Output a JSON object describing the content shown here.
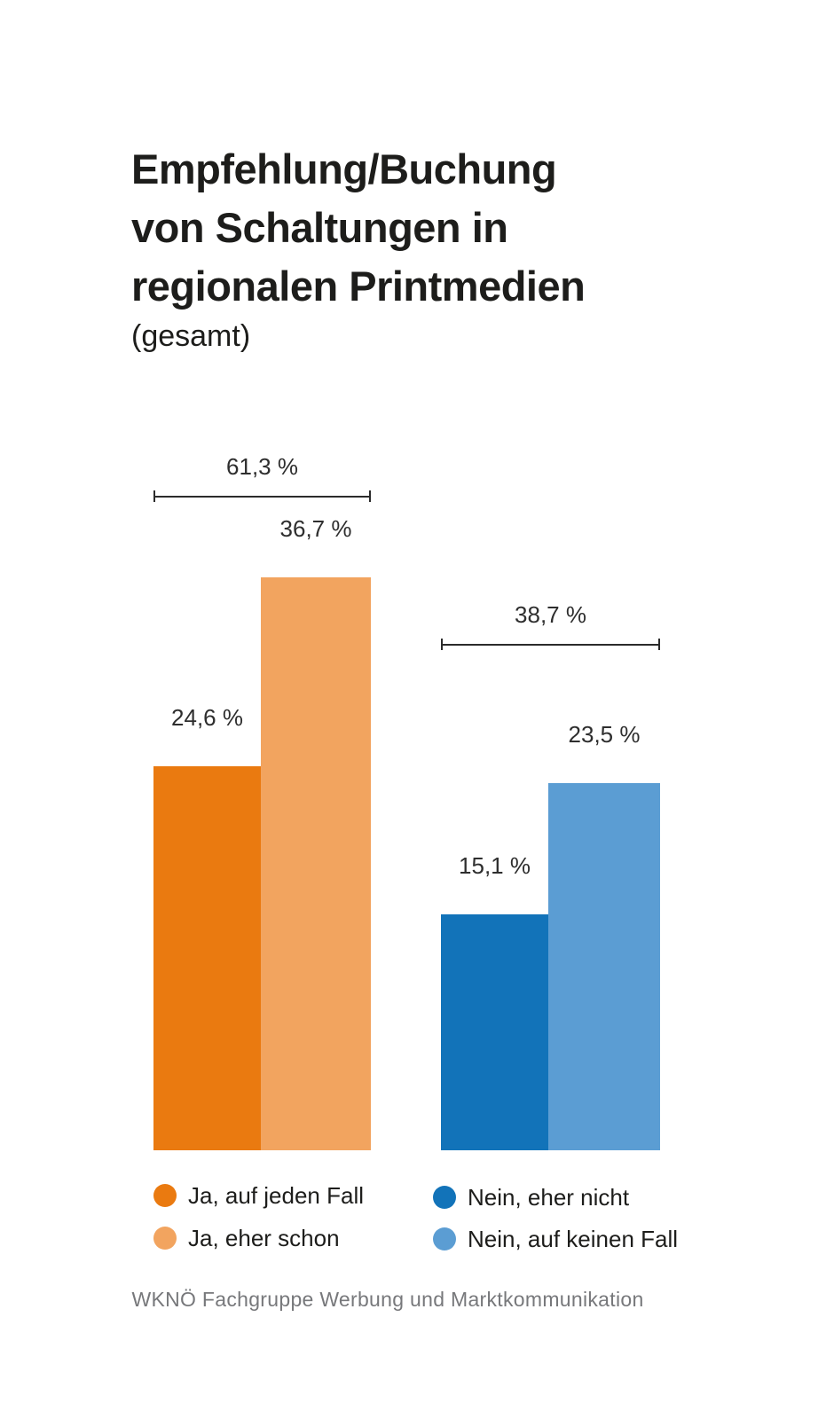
{
  "header": {
    "title": "Empfehlung/Buchung von Schaltungen in regionalen Printmedien",
    "title_lines": [
      "Empfehlung/Buchung",
      "von Schaltungen in",
      "regionalen Printmedien"
    ],
    "subtitle": "(gesamt)"
  },
  "chart_data": {
    "type": "bar",
    "title": "Empfehlung/Buchung von Schaltungen in regionalen Printmedien (gesamt)",
    "unit": "%",
    "axes_shown": false,
    "categories": [
      "Ja, auf jeden Fall",
      "Ja, eher schon",
      "Nein, eher nicht",
      "Nein, auf keinen Fall"
    ],
    "values": [
      24.6,
      36.7,
      15.1,
      23.5
    ],
    "value_labels": [
      "24,6 %",
      "36,7 %",
      "15,1 %",
      "23,5 %"
    ],
    "colors": [
      "#ea7a10",
      "#f2a45f",
      "#1273b9",
      "#5b9dd3"
    ],
    "groups": [
      {
        "total": 61.3,
        "total_label": "61,3 %",
        "bar_indices": [
          0,
          1
        ]
      },
      {
        "total": 38.7,
        "total_label": "38,7 %",
        "bar_indices": [
          2,
          3
        ]
      }
    ],
    "legend_position": "bottom",
    "grid": false
  },
  "legend": {
    "items": [
      {
        "label": "Ja, auf jeden Fall",
        "color": "#ea7a10"
      },
      {
        "label": "Ja, eher schon",
        "color": "#f2a45f"
      },
      {
        "label": "Nein, eher nicht",
        "color": "#1273b9"
      },
      {
        "label": "Nein, auf keinen Fall",
        "color": "#5b9dd3"
      }
    ]
  },
  "footer": {
    "text": "WKNÖ Fachgruppe Werbung und Marktkommunikation",
    "color": "#77787b"
  }
}
